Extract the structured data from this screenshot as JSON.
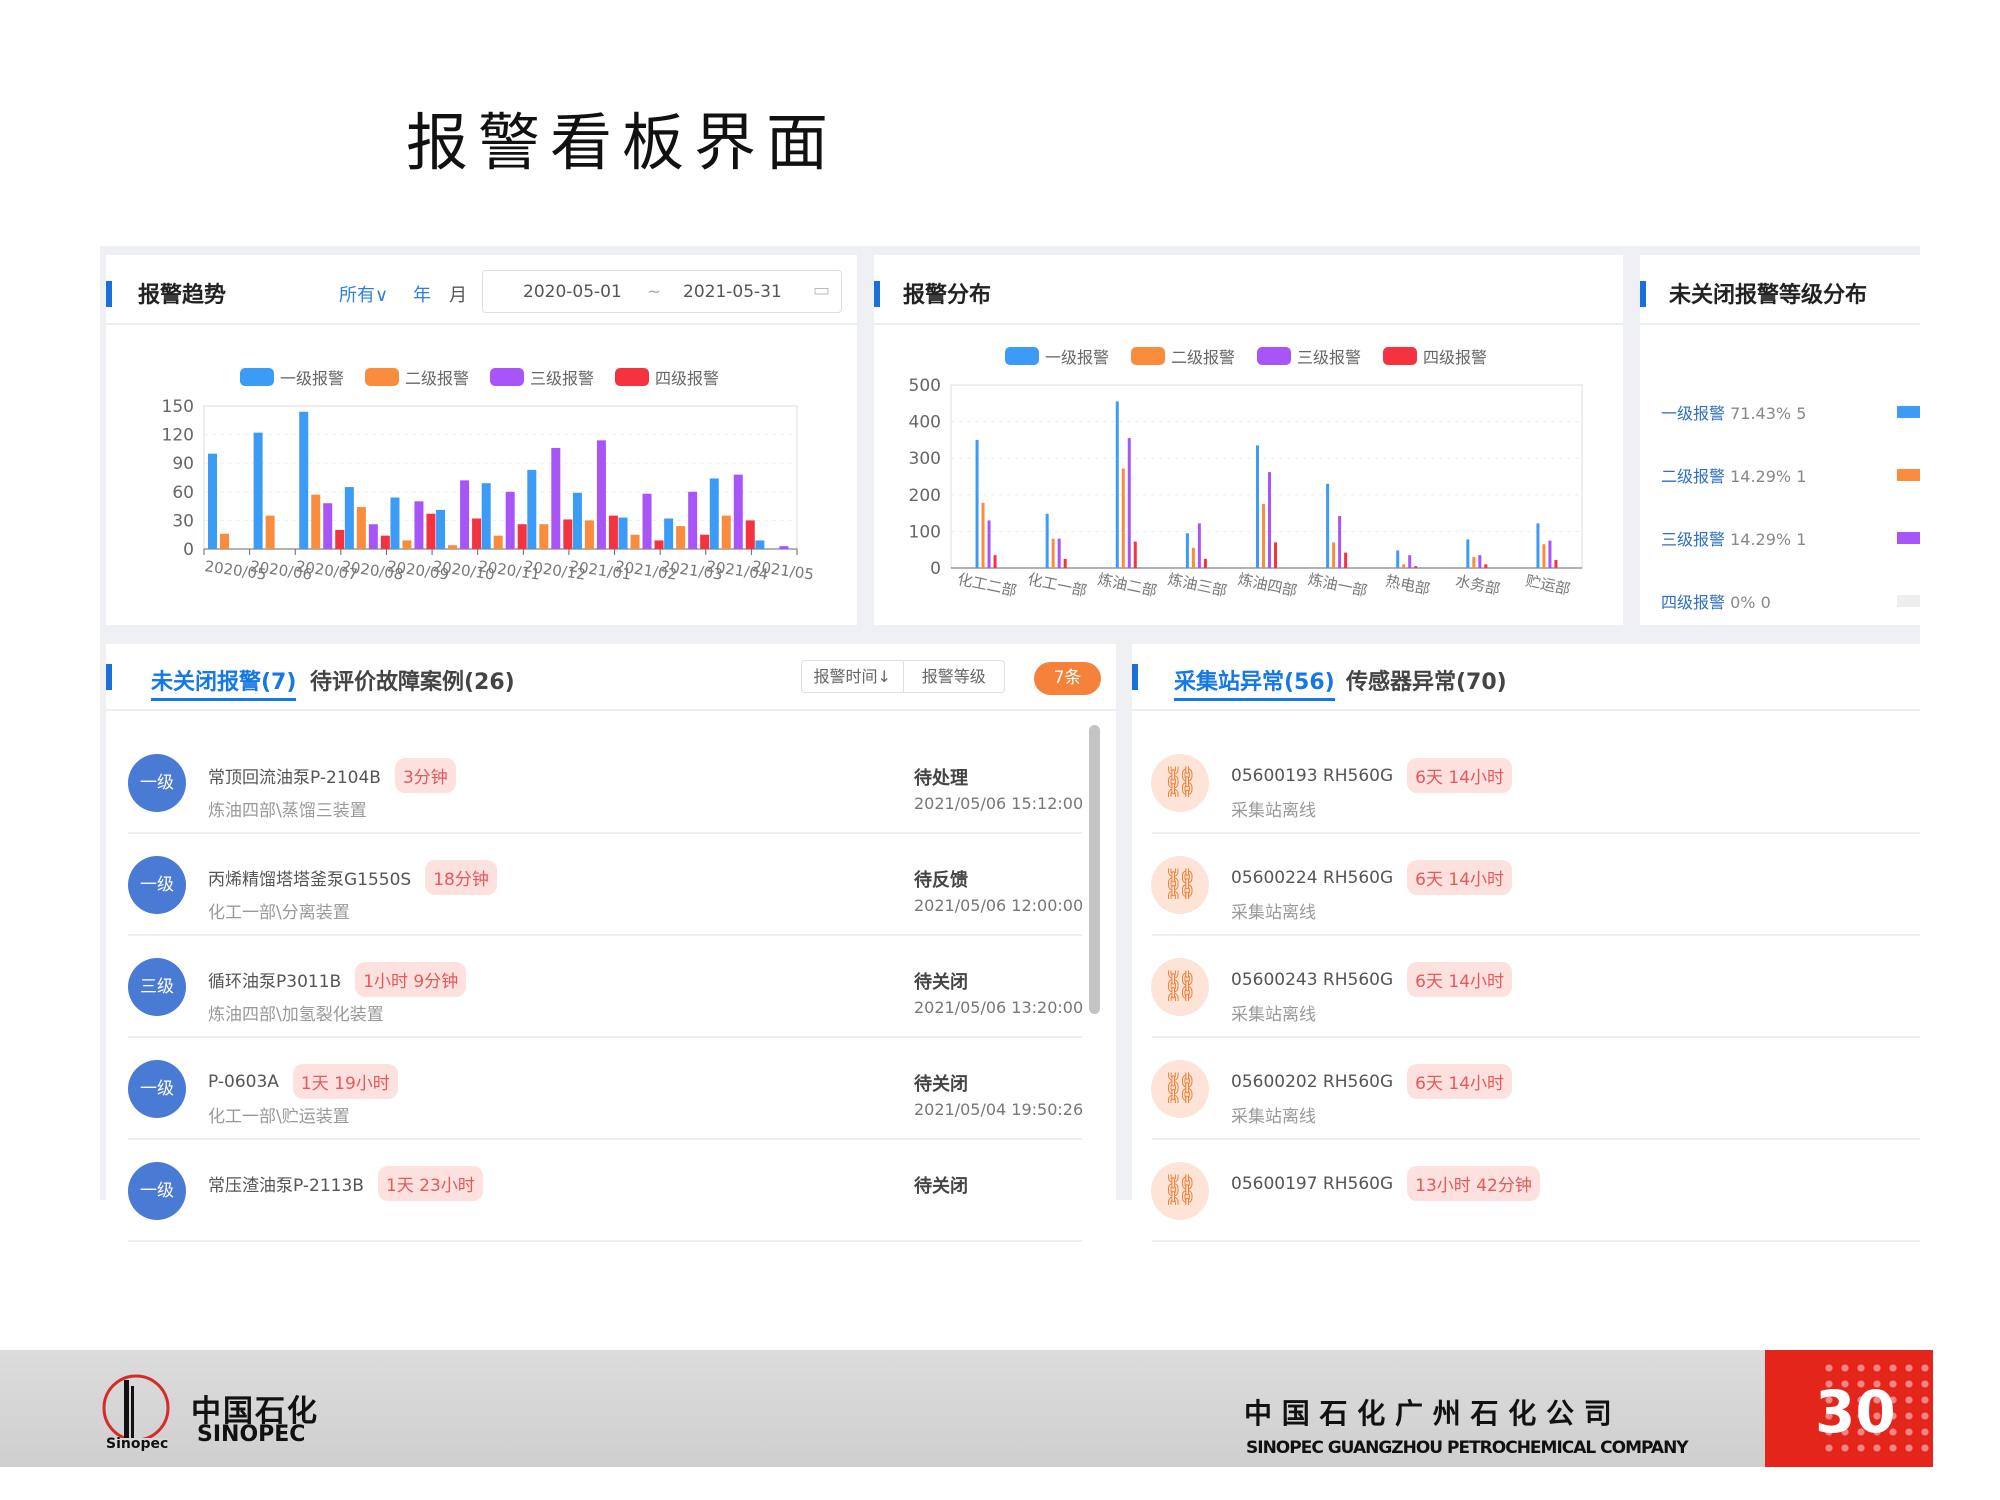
{
  "slide_title": "报警看板界面",
  "colors": {
    "level1": "#3b9bf5",
    "level2": "#f98c3d",
    "level3": "#a855f7",
    "level4": "#f5333f",
    "accent": "#1677e6",
    "count_badge": "#f5813a"
  },
  "trend": {
    "title": "报警趋势",
    "filter_all": "所有∨",
    "filter_year": "年",
    "filter_month": "月",
    "date_start": "2020-05-01",
    "date_sep": "~",
    "date_end": "2021-05-31",
    "calendar_icon": "calendar-icon"
  },
  "distribution": {
    "title": "报警分布"
  },
  "level_dist": {
    "title": "未关闭报警等级分布",
    "items": [
      {
        "label": "一级报警",
        "pct": "71.43%",
        "count": "5",
        "color": "#3b9bf5"
      },
      {
        "label": "二级报警",
        "pct": "14.29%",
        "count": "1",
        "color": "#f98c3d"
      },
      {
        "label": "三级报警",
        "pct": "14.29%",
        "count": "1",
        "color": "#a855f7"
      },
      {
        "label": "四级报警",
        "pct": "0%",
        "count": "0",
        "color": "#eeeeee"
      }
    ]
  },
  "chart_data": [
    {
      "type": "bar",
      "legend": [
        "一级报警",
        "二级报警",
        "三级报警",
        "四级报警"
      ],
      "legend_position": "top",
      "categories": [
        "2020/05",
        "2020/06",
        "2020/07",
        "2020/08",
        "2020/09",
        "2020/10",
        "2020/11",
        "2020/12",
        "2021/01",
        "2021/02",
        "2021/03",
        "2021/04",
        "2021/05"
      ],
      "series": [
        {
          "name": "一级报警",
          "values": [
            100,
            122,
            144,
            65,
            54,
            41,
            69,
            83,
            59,
            33,
            32,
            74,
            9
          ]
        },
        {
          "name": "二级报警",
          "values": [
            16,
            35,
            57,
            44,
            9,
            4,
            14,
            26,
            30,
            15,
            24,
            35,
            0
          ]
        },
        {
          "name": "三级报警",
          "values": [
            0,
            0,
            48,
            26,
            50,
            72,
            60,
            106,
            114,
            58,
            60,
            78,
            3
          ]
        },
        {
          "name": "四级报警",
          "values": [
            0,
            0,
            20,
            14,
            37,
            32,
            26,
            31,
            35,
            9,
            15,
            30,
            0
          ]
        }
      ],
      "yticks": [
        "0",
        "30",
        "60",
        "90",
        "120",
        "150"
      ],
      "ylim": [
        0,
        150
      ],
      "grid": true
    },
    {
      "type": "bar",
      "legend": [
        "一级报警",
        "二级报警",
        "三级报警",
        "四级报警"
      ],
      "legend_position": "top",
      "categories": [
        "化工二部",
        "化工一部",
        "炼油二部",
        "炼油三部",
        "炼油四部",
        "炼油一部",
        "热电部",
        "水务部",
        "贮运部"
      ],
      "series": [
        {
          "name": "一级报警",
          "values": [
            350,
            148,
            455,
            95,
            335,
            230,
            48,
            78,
            122
          ]
        },
        {
          "name": "二级报警",
          "values": [
            178,
            80,
            272,
            55,
            175,
            70,
            10,
            30,
            65
          ]
        },
        {
          "name": "三级报警",
          "values": [
            130,
            80,
            355,
            122,
            262,
            142,
            35,
            35,
            75
          ]
        },
        {
          "name": "四级报警",
          "values": [
            35,
            25,
            72,
            25,
            70,
            42,
            5,
            10,
            22
          ]
        }
      ],
      "yticks": [
        "0",
        "100",
        "200",
        "300",
        "400",
        "500"
      ],
      "ylim": [
        0,
        500
      ],
      "grid": true
    }
  ],
  "alarms": {
    "tab_active": "未关闭报警(7)",
    "tab_other": "待评价故障案例(26)",
    "sort_time": "报警时间↓",
    "sort_level": "报警等级",
    "count": "7条",
    "rows": [
      {
        "level": "一级",
        "name": "常顶回流油泵P-2104B",
        "duration": "3分钟",
        "location": "炼油四部\\蒸馏三装置",
        "status": "待处理",
        "time": "2021/05/06 15:12:00"
      },
      {
        "level": "一级",
        "name": "丙烯精馏塔塔釜泵G1550S",
        "duration": "18分钟",
        "location": "化工一部\\分离装置",
        "status": "待反馈",
        "time": "2021/05/06 12:00:00"
      },
      {
        "level": "三级",
        "name": "循环油泵P3011B",
        "duration": "1小时 9分钟",
        "location": "炼油四部\\加氢裂化装置",
        "status": "待关闭",
        "time": "2021/05/06 13:20:00"
      },
      {
        "level": "一级",
        "name": "P-0603A",
        "duration": "1天 19小时",
        "location": "化工一部\\贮运装置",
        "status": "待关闭",
        "time": "2021/05/04 19:50:26"
      },
      {
        "level": "一级",
        "name": "常压渣油泵P-2113B",
        "duration": "1天 23小时",
        "location": "",
        "status": "待关闭",
        "time": ""
      }
    ]
  },
  "anomalies": {
    "tab_active": "采集站异常(56)",
    "tab_other": "传感器异常(70)",
    "rows": [
      {
        "name": "05600193 RH560G",
        "duration": "6天 14小时",
        "desc": "采集站离线"
      },
      {
        "name": "05600224 RH560G",
        "duration": "6天 14小时",
        "desc": "采集站离线"
      },
      {
        "name": "05600243 RH560G",
        "duration": "6天 14小时",
        "desc": "采集站离线"
      },
      {
        "name": "05600202 RH560G",
        "duration": "6天 14小时",
        "desc": "采集站离线"
      },
      {
        "name": "05600197 RH560G",
        "duration": "13小时 42分钟",
        "desc": ""
      }
    ]
  },
  "footer": {
    "logo_cn": "中国石化",
    "logo_en": "SINOPEC",
    "company_cn": "中 国 石 化 广 州 石 化 公 司",
    "company_en": "SINOPEC GUANGZHOU  PETROCHEMICAL COMPANY",
    "page_number": "30"
  }
}
